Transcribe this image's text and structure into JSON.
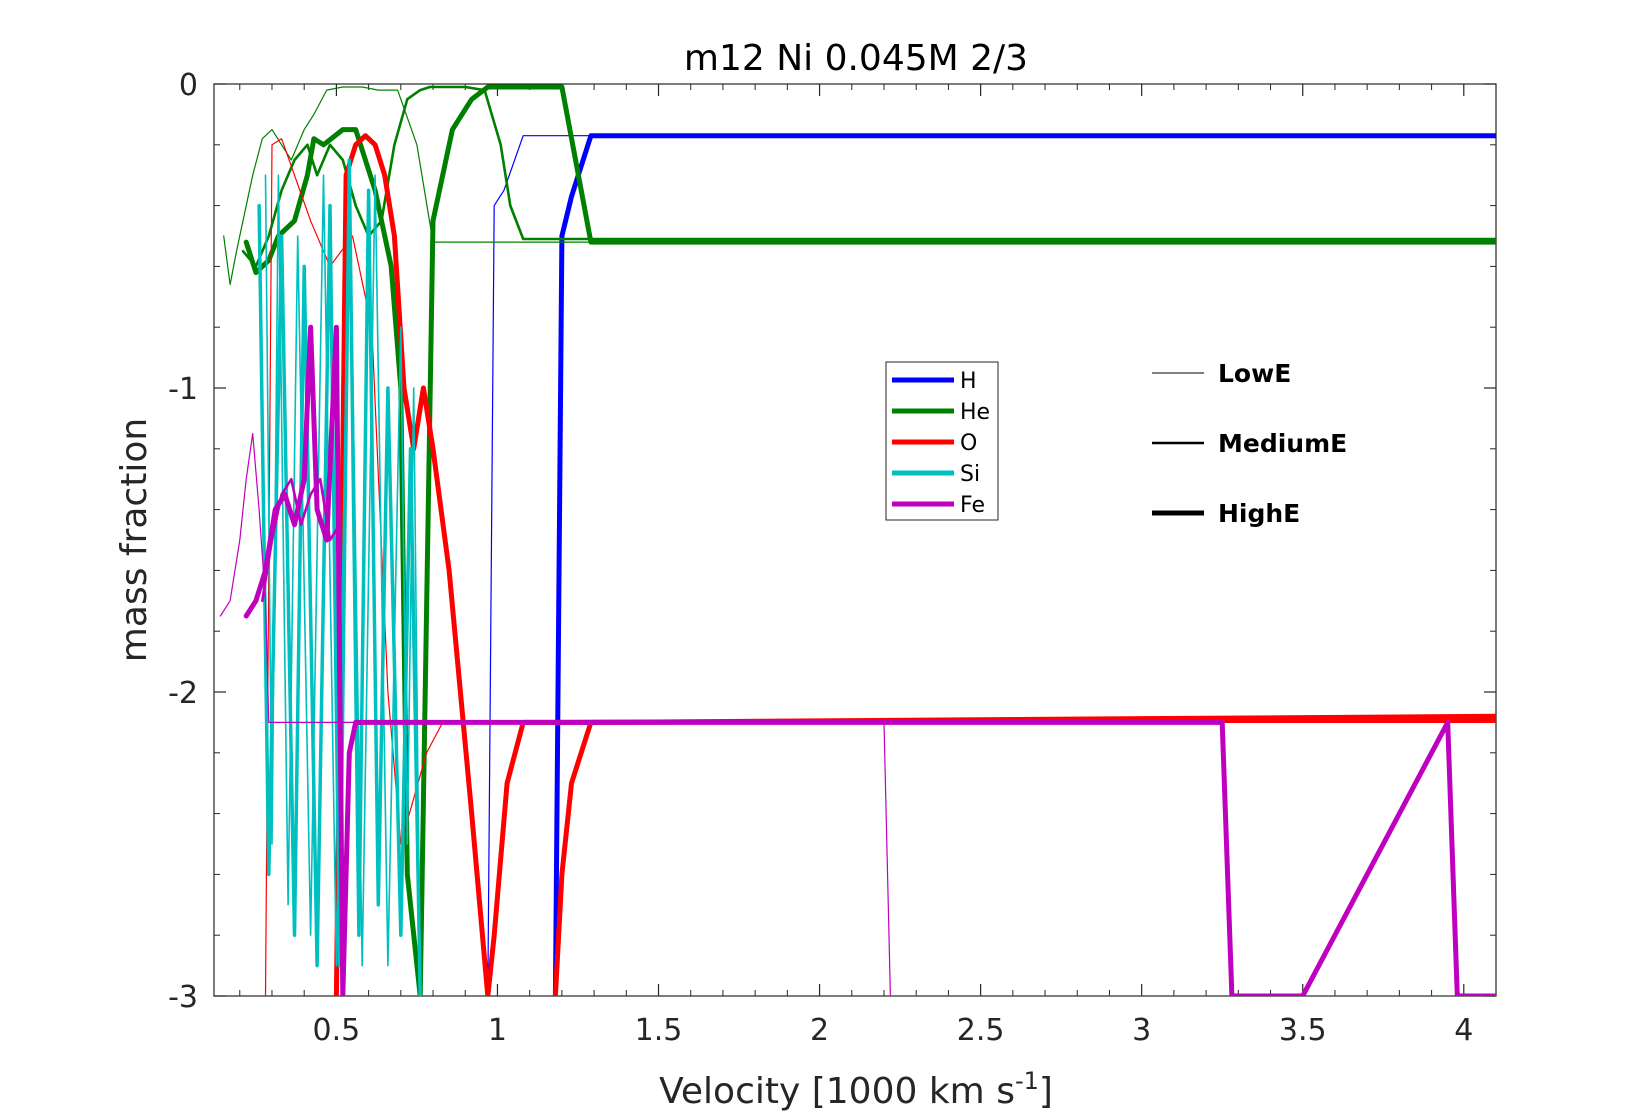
{
  "chart_data": {
    "type": "line",
    "title": "m12 Ni 0.045M 2/3",
    "xlabel": "Velocity [1000 km s",
    "xlabel_sup": "-1",
    "xlabel_end": "]",
    "ylabel": "mass fraction",
    "xlim": [
      0.12,
      4.1
    ],
    "ylim": [
      -3,
      0
    ],
    "xticks": [
      0.5,
      1,
      1.5,
      2,
      2.5,
      3,
      3.5,
      4
    ],
    "xtick_labels": [
      "0.5",
      "1",
      "1.5",
      "2",
      "2.5",
      "3",
      "3.5",
      "4"
    ],
    "yticks": [
      0,
      -1,
      -2,
      -3
    ],
    "ytick_labels": [
      "0",
      "-1",
      "-2",
      "-3"
    ],
    "grid": false,
    "colors": {
      "H": "#0000ff",
      "He": "#008000",
      "O": "#ff0000",
      "Si": "#00bfbf",
      "Fe": "#bf00bf"
    },
    "legend_elements": {
      "placement": "center",
      "entries": [
        "H",
        "He",
        "O",
        "Si",
        "Fe"
      ]
    },
    "legend_energy": {
      "placement": "right",
      "entries": [
        {
          "label": "LowE",
          "width": 1
        },
        {
          "label": "MediumE",
          "width": 2.5
        },
        {
          "label": "HighE",
          "width": 5
        }
      ]
    },
    "series": [
      {
        "element": "H",
        "energy": "LowE",
        "width": 1.2,
        "x": [
          0.97,
          0.99,
          1.02,
          1.08,
          4.1
        ],
        "y": [
          -3,
          -0.4,
          -0.35,
          -0.17,
          -0.17
        ]
      },
      {
        "element": "H",
        "energy": "HighE",
        "width": 5,
        "x": [
          1.18,
          1.2,
          1.23,
          1.29,
          4.1
        ],
        "y": [
          -3,
          -0.5,
          -0.37,
          -0.17,
          -0.17
        ]
      },
      {
        "element": "He",
        "energy": "LowE",
        "width": 1.2,
        "x": [
          0.15,
          0.17,
          0.19,
          0.21,
          0.24,
          0.27,
          0.3,
          0.33,
          0.36,
          0.4,
          0.43,
          0.47,
          0.52,
          0.58,
          0.63,
          0.69,
          0.75,
          0.8,
          4.1
        ],
        "y": [
          -0.5,
          -0.66,
          -0.55,
          -0.45,
          -0.3,
          -0.18,
          -0.15,
          -0.2,
          -0.25,
          -0.15,
          -0.1,
          -0.02,
          -0.01,
          -0.01,
          -0.02,
          -0.02,
          -0.2,
          -0.52,
          -0.52
        ]
      },
      {
        "element": "He",
        "energy": "MediumE",
        "width": 2.6,
        "x": [
          0.21,
          0.25,
          0.29,
          0.33,
          0.37,
          0.41,
          0.44,
          0.48,
          0.52,
          0.56,
          0.6,
          0.64,
          0.68,
          0.72,
          0.76,
          0.79,
          0.84,
          0.9,
          0.96,
          1.01,
          1.04,
          1.08,
          4.1
        ],
        "y": [
          -0.55,
          -0.6,
          -0.5,
          -0.35,
          -0.25,
          -0.2,
          -0.3,
          -0.2,
          -0.25,
          -0.4,
          -0.5,
          -0.45,
          -0.2,
          -0.05,
          -0.02,
          -0.01,
          -0.01,
          -0.01,
          -0.02,
          -0.2,
          -0.4,
          -0.51,
          -0.51
        ]
      },
      {
        "element": "He",
        "energy": "HighE",
        "width": 5,
        "x": [
          0.22,
          0.25,
          0.29,
          0.32,
          0.37,
          0.41,
          0.43,
          0.46,
          0.52,
          0.56,
          0.62,
          0.67,
          0.7,
          0.72,
          0.76,
          0.8,
          0.86,
          0.92,
          0.97,
          1.02,
          1.1,
          1.2,
          1.29,
          4.1
        ],
        "y": [
          -0.52,
          -0.62,
          -0.58,
          -0.5,
          -0.45,
          -0.3,
          -0.18,
          -0.2,
          -0.15,
          -0.15,
          -0.35,
          -0.6,
          -1.0,
          -2.6,
          -3.0,
          -0.45,
          -0.15,
          -0.05,
          -0.01,
          -0.01,
          -0.01,
          -0.01,
          -0.52,
          -0.52
        ]
      },
      {
        "element": "O",
        "energy": "LowE",
        "width": 1.2,
        "x": [
          0.28,
          0.3,
          0.33,
          0.37,
          0.42,
          0.48,
          0.55,
          0.61,
          0.66,
          0.7,
          0.74,
          0.78,
          0.83,
          0.9,
          1.0,
          4.1
        ],
        "y": [
          -3,
          -0.2,
          -0.18,
          -0.3,
          -0.45,
          -0.6,
          -0.5,
          -0.8,
          -2.0,
          -2.5,
          -2.35,
          -2.2,
          -2.1,
          -2.1,
          -2.1,
          -2.1
        ]
      },
      {
        "element": "O",
        "energy": "HighE",
        "width": 5,
        "x": [
          0.5,
          0.53,
          0.56,
          0.59,
          0.62,
          0.65,
          0.68,
          0.71,
          0.74,
          0.77,
          0.8,
          0.85,
          0.92,
          0.97,
          0.99,
          1.03,
          1.08,
          1.18,
          4.1
        ],
        "y": [
          -3,
          -0.3,
          -0.2,
          -0.17,
          -0.2,
          -0.3,
          -0.5,
          -1.0,
          -1.2,
          -1.0,
          -1.2,
          -1.6,
          -2.4,
          -3.0,
          -2.8,
          -2.3,
          -2.1,
          -2.1,
          -2.09
        ]
      },
      {
        "element": "O",
        "energy": "HighE",
        "width": 5,
        "x": [
          1.18,
          1.2,
          1.23,
          1.29,
          4.1
        ],
        "y": [
          -3.0,
          -2.6,
          -2.3,
          -2.1,
          -2.08
        ]
      },
      {
        "element": "Si",
        "energy": "LowE",
        "width": 1.6,
        "x": [
          0.28,
          0.3,
          0.32,
          0.35,
          0.38,
          0.42,
          0.46,
          0.5,
          0.54,
          0.58,
          0.62,
          0.66,
          0.7,
          0.72,
          0.74,
          0.76
        ],
        "y": [
          -0.3,
          -2.5,
          -0.3,
          -2.7,
          -0.5,
          -2.8,
          -0.3,
          -2.9,
          -0.25,
          -2.9,
          -0.3,
          -2.9,
          -0.8,
          -2.5,
          -1.0,
          -3.0
        ]
      },
      {
        "element": "Si",
        "energy": "HighE",
        "width": 3.5,
        "x": [
          0.26,
          0.29,
          0.33,
          0.37,
          0.4,
          0.44,
          0.48,
          0.51,
          0.54,
          0.57,
          0.6,
          0.63,
          0.66,
          0.7,
          0.73,
          0.76
        ],
        "y": [
          -0.4,
          -2.6,
          -0.5,
          -2.8,
          -0.6,
          -2.9,
          -0.4,
          -2.9,
          -0.25,
          -2.8,
          -0.35,
          -2.7,
          -1.0,
          -2.8,
          -1.2,
          -3.0
        ]
      },
      {
        "element": "Fe",
        "energy": "LowE",
        "width": 1.2,
        "x": [
          0.14,
          0.17,
          0.2,
          0.22,
          0.24,
          0.26,
          0.28,
          0.29,
          0.33,
          0.5,
          1.0,
          1.5,
          2.0,
          2.2,
          2.22,
          2.5,
          3.0,
          3.5,
          4.1
        ],
        "y": [
          -1.75,
          -1.7,
          -1.5,
          -1.3,
          -1.15,
          -1.4,
          -1.7,
          -2.1,
          -2.1,
          -2.1,
          -2.1,
          -2.1,
          -2.1,
          -2.1,
          -3.0,
          -3.0,
          -3.0,
          -3.0,
          -3.0
        ]
      },
      {
        "element": "Fe",
        "energy": "MediumE",
        "width": 2.6,
        "x": [
          0.27,
          0.3,
          0.33,
          0.36,
          0.39,
          0.42,
          0.45,
          0.48,
          0.51
        ],
        "y": [
          -1.7,
          -1.5,
          -1.35,
          -1.3,
          -1.45,
          -1.35,
          -1.3,
          -1.5,
          -1.45
        ]
      },
      {
        "element": "Fe",
        "energy": "HighE",
        "width": 5,
        "x": [
          0.22,
          0.25,
          0.28,
          0.31,
          0.34,
          0.37,
          0.4,
          0.42,
          0.44,
          0.47,
          0.5,
          0.52,
          0.54,
          0.56,
          0.6,
          0.7,
          1.0,
          2.0,
          3.0,
          3.25,
          3.28,
          3.5,
          3.95,
          3.98,
          4.1
        ],
        "y": [
          -1.75,
          -1.7,
          -1.6,
          -1.4,
          -1.35,
          -1.45,
          -1.3,
          -0.8,
          -1.4,
          -1.5,
          -0.8,
          -3.0,
          -2.2,
          -2.1,
          -2.1,
          -2.1,
          -2.1,
          -2.1,
          -2.1,
          -2.1,
          -3.0,
          -3.0,
          -2.1,
          -3.0,
          -3.0
        ]
      }
    ]
  }
}
